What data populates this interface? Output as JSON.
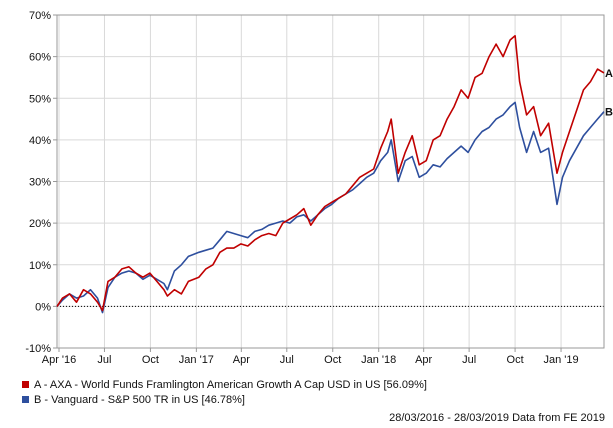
{
  "chart_data": {
    "type": "line",
    "title": "",
    "xlabel": "",
    "ylabel": "",
    "ylim": [
      -10,
      70
    ],
    "yticks": [
      -10,
      0,
      10,
      20,
      30,
      40,
      50,
      60,
      70
    ],
    "ytick_labels": [
      "-10%",
      "0%",
      "10%",
      "20%",
      "30%",
      "40%",
      "50%",
      "60%",
      "70%"
    ],
    "x_start": "2016-03-28",
    "x_end": "2019-03-28",
    "xticks": [
      {
        "date": "2016-04-01",
        "label": "Apr '16"
      },
      {
        "date": "2016-07-01",
        "label": "Jul"
      },
      {
        "date": "2016-10-01",
        "label": "Oct"
      },
      {
        "date": "2017-01-01",
        "label": "Jan '17"
      },
      {
        "date": "2017-04-01",
        "label": "Apr"
      },
      {
        "date": "2017-07-01",
        "label": "Jul"
      },
      {
        "date": "2017-10-01",
        "label": "Oct"
      },
      {
        "date": "2018-01-01",
        "label": "Jan '18"
      },
      {
        "date": "2018-04-01",
        "label": "Apr"
      },
      {
        "date": "2018-07-01",
        "label": "Jul"
      },
      {
        "date": "2018-10-01",
        "label": "Oct"
      },
      {
        "date": "2019-01-01",
        "label": "Jan '19"
      }
    ],
    "grid": true,
    "series": [
      {
        "name": "A - AXA - World Funds Framlington American Growth A Cap USD in US [56.09%]",
        "end_label": "A",
        "color": "#c00000",
        "points": [
          [
            "2016-03-28",
            0
          ],
          [
            "2016-04-08",
            2
          ],
          [
            "2016-04-22",
            3
          ],
          [
            "2016-05-06",
            1
          ],
          [
            "2016-05-20",
            4
          ],
          [
            "2016-06-03",
            3
          ],
          [
            "2016-06-17",
            1
          ],
          [
            "2016-06-27",
            -1
          ],
          [
            "2016-07-08",
            6
          ],
          [
            "2016-07-22",
            7
          ],
          [
            "2016-08-05",
            9
          ],
          [
            "2016-08-19",
            9.5
          ],
          [
            "2016-09-02",
            8
          ],
          [
            "2016-09-16",
            7
          ],
          [
            "2016-09-30",
            8
          ],
          [
            "2016-10-14",
            6
          ],
          [
            "2016-10-28",
            4
          ],
          [
            "2016-11-04",
            2.5
          ],
          [
            "2016-11-18",
            4
          ],
          [
            "2016-12-02",
            3
          ],
          [
            "2016-12-16",
            6
          ],
          [
            "2017-01-06",
            7
          ],
          [
            "2017-01-20",
            9
          ],
          [
            "2017-02-03",
            10
          ],
          [
            "2017-02-17",
            13
          ],
          [
            "2017-03-03",
            14
          ],
          [
            "2017-03-17",
            14
          ],
          [
            "2017-03-31",
            15
          ],
          [
            "2017-04-14",
            14.5
          ],
          [
            "2017-04-28",
            16
          ],
          [
            "2017-05-12",
            17
          ],
          [
            "2017-05-26",
            17.5
          ],
          [
            "2017-06-09",
            17
          ],
          [
            "2017-06-23",
            20
          ],
          [
            "2017-07-07",
            21
          ],
          [
            "2017-07-21",
            22
          ],
          [
            "2017-08-04",
            23.5
          ],
          [
            "2017-08-18",
            19.5
          ],
          [
            "2017-09-01",
            22
          ],
          [
            "2017-09-15",
            24
          ],
          [
            "2017-09-29",
            25
          ],
          [
            "2017-10-13",
            26
          ],
          [
            "2017-10-27",
            27
          ],
          [
            "2017-11-10",
            29
          ],
          [
            "2017-11-24",
            31
          ],
          [
            "2017-12-08",
            32
          ],
          [
            "2017-12-22",
            33
          ],
          [
            "2018-01-05",
            38
          ],
          [
            "2018-01-19",
            42
          ],
          [
            "2018-01-26",
            45
          ],
          [
            "2018-02-09",
            32
          ],
          [
            "2018-02-23",
            37
          ],
          [
            "2018-03-09",
            41
          ],
          [
            "2018-03-23",
            34
          ],
          [
            "2018-04-06",
            35
          ],
          [
            "2018-04-20",
            40
          ],
          [
            "2018-05-04",
            41
          ],
          [
            "2018-05-18",
            45
          ],
          [
            "2018-06-01",
            48
          ],
          [
            "2018-06-15",
            52
          ],
          [
            "2018-06-29",
            50
          ],
          [
            "2018-07-13",
            55
          ],
          [
            "2018-07-27",
            56
          ],
          [
            "2018-08-10",
            60
          ],
          [
            "2018-08-24",
            63
          ],
          [
            "2018-09-07",
            60
          ],
          [
            "2018-09-21",
            64
          ],
          [
            "2018-10-01",
            65
          ],
          [
            "2018-10-10",
            54
          ],
          [
            "2018-10-24",
            46
          ],
          [
            "2018-11-07",
            48
          ],
          [
            "2018-11-21",
            41
          ],
          [
            "2018-12-07",
            44
          ],
          [
            "2018-12-24",
            32
          ],
          [
            "2019-01-04",
            37
          ],
          [
            "2019-01-18",
            42
          ],
          [
            "2019-02-01",
            47
          ],
          [
            "2019-02-15",
            52
          ],
          [
            "2019-03-01",
            54
          ],
          [
            "2019-03-15",
            57
          ],
          [
            "2019-03-28",
            56.09
          ]
        ]
      },
      {
        "name": "B - Vanguard - S&P 500 TR in US [46.78%]",
        "end_label": "B",
        "color": "#2e4f9e",
        "points": [
          [
            "2016-03-28",
            0
          ],
          [
            "2016-04-08",
            1.5
          ],
          [
            "2016-04-22",
            3
          ],
          [
            "2016-05-06",
            2
          ],
          [
            "2016-05-20",
            2.5
          ],
          [
            "2016-06-03",
            4
          ],
          [
            "2016-06-17",
            2
          ],
          [
            "2016-06-27",
            -1.5
          ],
          [
            "2016-07-08",
            4.5
          ],
          [
            "2016-07-22",
            7
          ],
          [
            "2016-08-05",
            8
          ],
          [
            "2016-08-19",
            8.5
          ],
          [
            "2016-09-02",
            8
          ],
          [
            "2016-09-16",
            6.5
          ],
          [
            "2016-09-30",
            7.5
          ],
          [
            "2016-10-14",
            6.5
          ],
          [
            "2016-10-28",
            5.5
          ],
          [
            "2016-11-04",
            4
          ],
          [
            "2016-11-18",
            8.5
          ],
          [
            "2016-12-02",
            10
          ],
          [
            "2016-12-16",
            12
          ],
          [
            "2017-01-06",
            13
          ],
          [
            "2017-01-20",
            13.5
          ],
          [
            "2017-02-03",
            14
          ],
          [
            "2017-02-17",
            16
          ],
          [
            "2017-03-03",
            18
          ],
          [
            "2017-03-17",
            17.5
          ],
          [
            "2017-03-31",
            17
          ],
          [
            "2017-04-14",
            16.5
          ],
          [
            "2017-04-28",
            18
          ],
          [
            "2017-05-12",
            18.5
          ],
          [
            "2017-05-26",
            19.5
          ],
          [
            "2017-06-09",
            20
          ],
          [
            "2017-06-23",
            20.5
          ],
          [
            "2017-07-07",
            20
          ],
          [
            "2017-07-21",
            21.5
          ],
          [
            "2017-08-04",
            22
          ],
          [
            "2017-08-18",
            20.5
          ],
          [
            "2017-09-01",
            22
          ],
          [
            "2017-09-15",
            23.5
          ],
          [
            "2017-09-29",
            24.5
          ],
          [
            "2017-10-13",
            26
          ],
          [
            "2017-10-27",
            27
          ],
          [
            "2017-11-10",
            28
          ],
          [
            "2017-11-24",
            29.5
          ],
          [
            "2017-12-08",
            31
          ],
          [
            "2017-12-22",
            32
          ],
          [
            "2018-01-05",
            35
          ],
          [
            "2018-01-19",
            37
          ],
          [
            "2018-01-26",
            40
          ],
          [
            "2018-02-09",
            30
          ],
          [
            "2018-02-23",
            35
          ],
          [
            "2018-03-09",
            36
          ],
          [
            "2018-03-23",
            31
          ],
          [
            "2018-04-06",
            32
          ],
          [
            "2018-04-20",
            34
          ],
          [
            "2018-05-04",
            33.5
          ],
          [
            "2018-05-18",
            35.5
          ],
          [
            "2018-06-01",
            37
          ],
          [
            "2018-06-15",
            38.5
          ],
          [
            "2018-06-29",
            37
          ],
          [
            "2018-07-13",
            40
          ],
          [
            "2018-07-27",
            42
          ],
          [
            "2018-08-10",
            43
          ],
          [
            "2018-08-24",
            45
          ],
          [
            "2018-09-07",
            46
          ],
          [
            "2018-09-21",
            48
          ],
          [
            "2018-10-01",
            49
          ],
          [
            "2018-10-10",
            43
          ],
          [
            "2018-10-24",
            37
          ],
          [
            "2018-11-07",
            42
          ],
          [
            "2018-11-21",
            37
          ],
          [
            "2018-12-07",
            38
          ],
          [
            "2018-12-24",
            24.5
          ],
          [
            "2019-01-04",
            31
          ],
          [
            "2019-01-18",
            35
          ],
          [
            "2019-02-01",
            38
          ],
          [
            "2019-02-15",
            41
          ],
          [
            "2019-03-01",
            43
          ],
          [
            "2019-03-15",
            45
          ],
          [
            "2019-03-28",
            46.78
          ]
        ]
      }
    ],
    "footer": "28/03/2016 - 28/03/2019 Data from FE 2019"
  }
}
